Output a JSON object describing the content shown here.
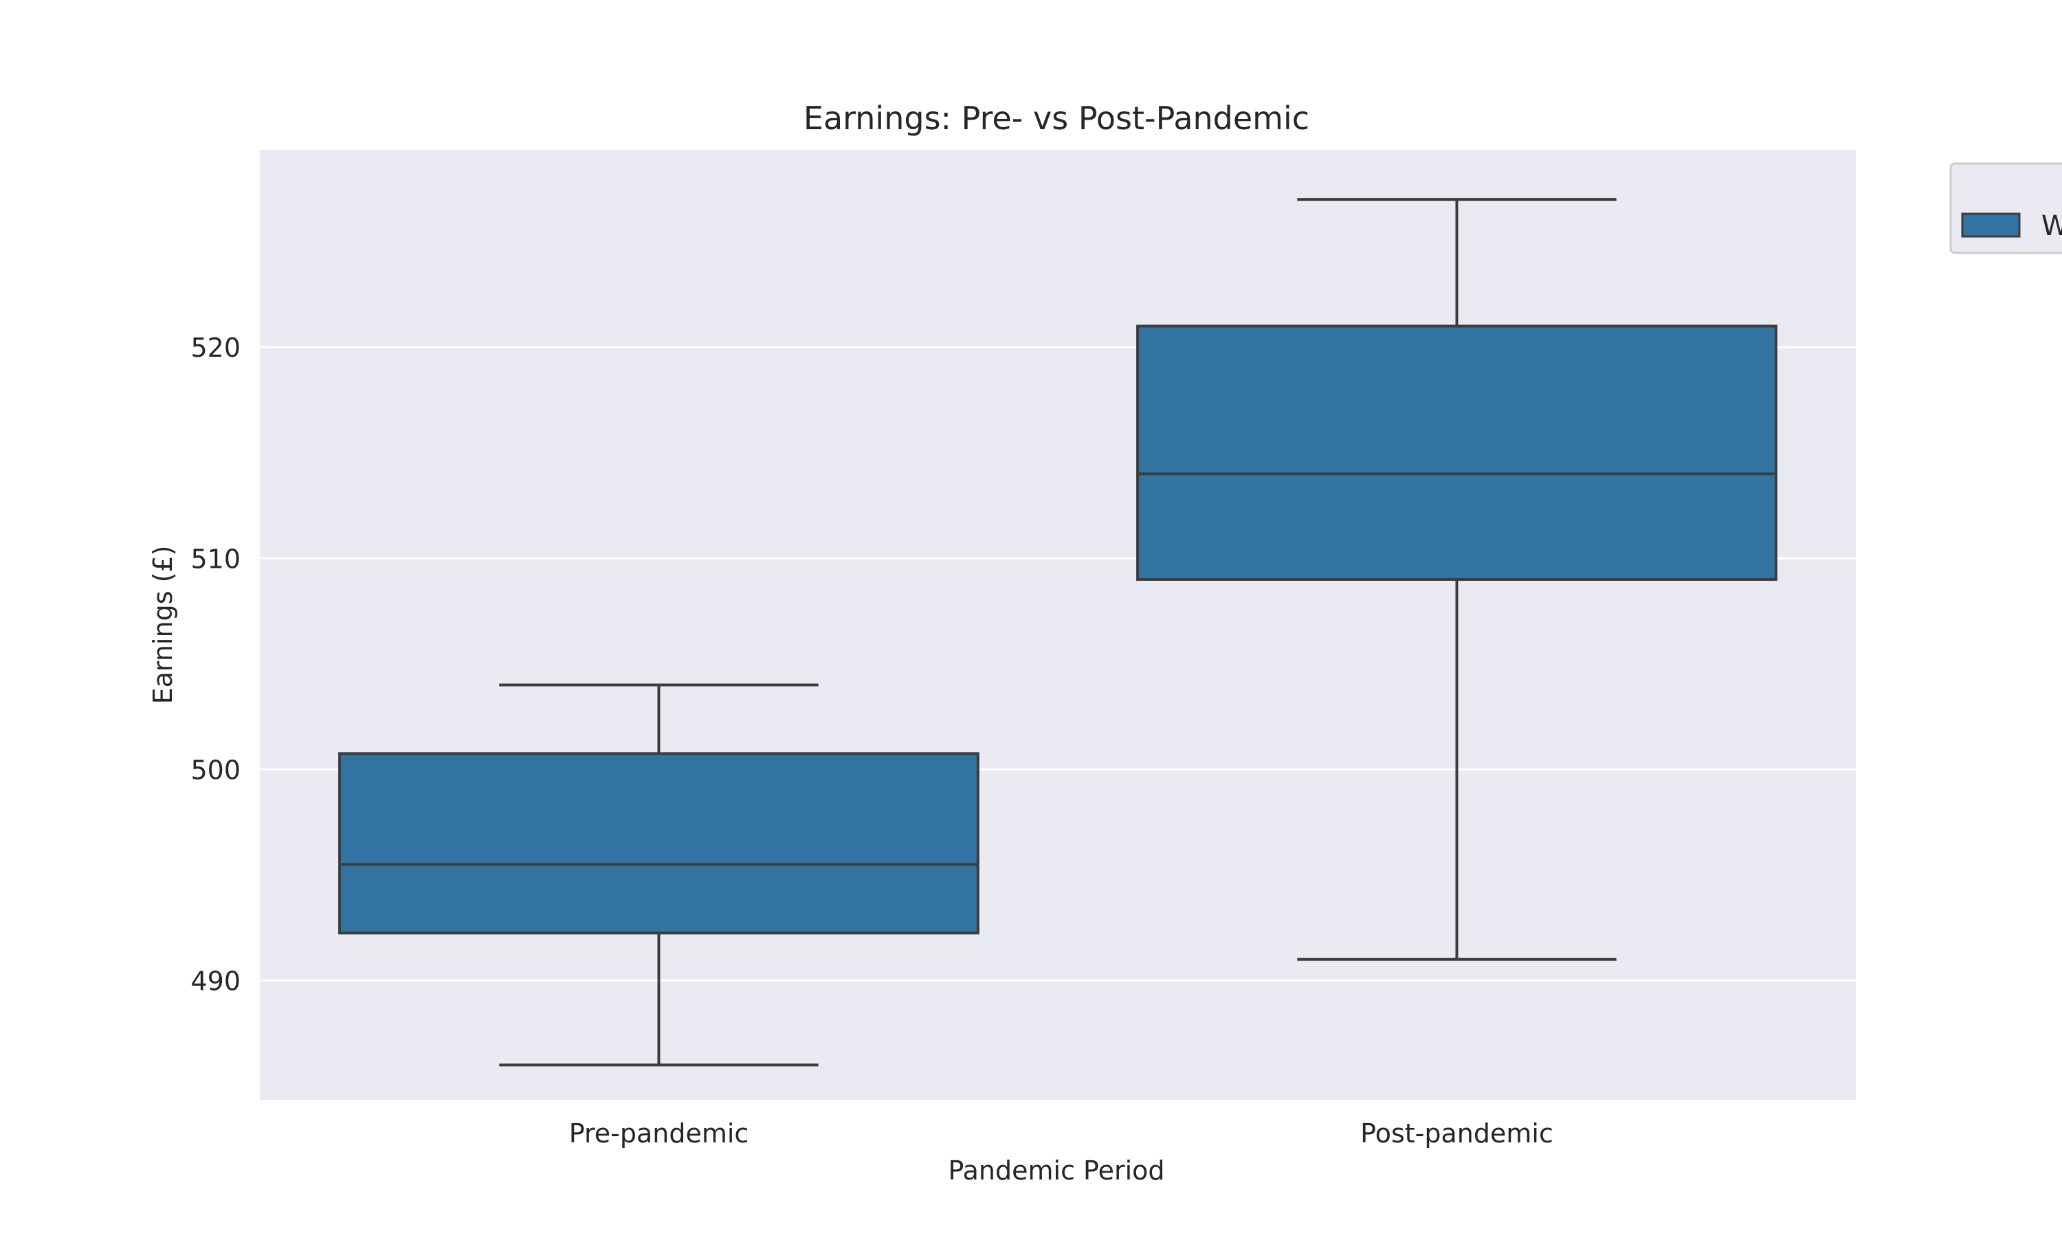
{
  "chart_data": {
    "type": "box",
    "title": "Earnings: Pre- vs Post-Pandemic",
    "xlabel": "Pandemic Period",
    "ylabel": "Earnings (£)",
    "categories": [
      "Pre-pandemic",
      "Post-pandemic"
    ],
    "boxes": [
      {
        "category": "Pre-pandemic",
        "whisker_low": 486.0,
        "q1": 492.25,
        "median": 495.5,
        "q3": 500.75,
        "whisker_high": 504.0
      },
      {
        "category": "Post-pandemic",
        "whisker_low": 491.0,
        "q1": 509.0,
        "median": 514.0,
        "q3": 521.0,
        "whisker_high": 527.0
      }
    ],
    "ylim": [
      484.35,
      529.35
    ],
    "yticks": [
      490,
      500,
      510,
      520
    ],
    "grid": true,
    "legend": {
      "placement": "outside-right-top",
      "entries": [
        "W"
      ]
    },
    "colors": {
      "box_fill": "#3274a1",
      "box_edge": "#3c3c3c",
      "axes_bg": "#eaeaf2",
      "grid": "#ffffff"
    }
  }
}
